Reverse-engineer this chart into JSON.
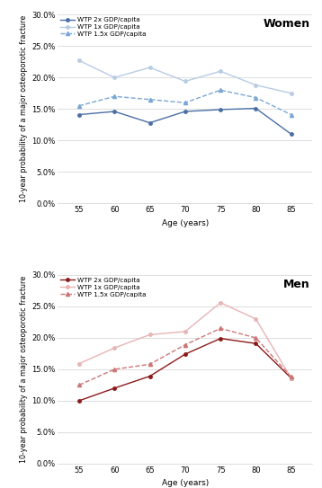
{
  "ages": [
    55,
    60,
    65,
    70,
    75,
    80,
    85
  ],
  "women": {
    "wtp2x": [
      0.141,
      0.146,
      0.128,
      0.146,
      0.149,
      0.151,
      0.11
    ],
    "wtp1x": [
      0.227,
      0.2,
      0.216,
      0.194,
      0.21,
      0.188,
      0.175
    ],
    "wtp1_5x": [
      0.155,
      0.17,
      0.165,
      0.16,
      0.18,
      0.168,
      0.141
    ]
  },
  "men": {
    "wtp2x": [
      0.1,
      0.12,
      0.139,
      0.174,
      0.199,
      0.191,
      0.136
    ],
    "wtp1x": [
      0.159,
      0.184,
      0.205,
      0.21,
      0.256,
      0.23,
      0.136
    ],
    "wtp1_5x": [
      0.125,
      0.15,
      0.158,
      0.189,
      0.215,
      0.2,
      0.138
    ]
  },
  "women_colors": {
    "wtp2x": "#4a6fa5",
    "wtp1x": "#b8cce4",
    "wtp1_5x": "#7ba7d4"
  },
  "men_colors": {
    "wtp2x": "#8b1a1a",
    "wtp1x": "#e8b4b4",
    "wtp1_5x": "#cc7777"
  },
  "ylabel": "10-year probability of a major osteoporotic fracture",
  "xlabel": "Age (years)",
  "ylim": [
    0.0,
    0.3
  ],
  "yticks": [
    0.0,
    0.05,
    0.1,
    0.15,
    0.2,
    0.25,
    0.3
  ],
  "legend_labels": [
    "WTP 2x GDP/capita",
    "WTP 1x GDP/capita",
    "WTP 1.5x GDP/capita"
  ],
  "title_women": "Women",
  "title_men": "Men"
}
